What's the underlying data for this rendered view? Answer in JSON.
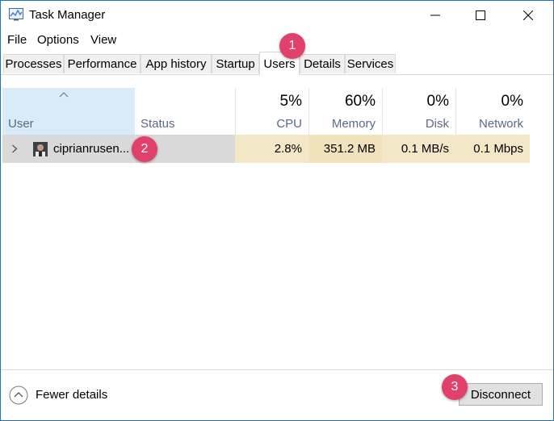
{
  "window": {
    "title": "Task Manager",
    "app_icon": "task-manager-icon",
    "controls": {
      "minimize": "minimize-icon",
      "maximize": "maximize-icon",
      "close": "close-icon"
    }
  },
  "menu": [
    "File",
    "Options",
    "View"
  ],
  "tabs": [
    {
      "label": "Processes",
      "active": false
    },
    {
      "label": "Performance",
      "active": false
    },
    {
      "label": "App history",
      "active": false
    },
    {
      "label": "Startup",
      "active": false
    },
    {
      "label": "Users",
      "active": true
    },
    {
      "label": "Details",
      "active": false
    },
    {
      "label": "Services",
      "active": false
    }
  ],
  "table": {
    "sort_indicator": "sort-up-icon",
    "columns": {
      "user": {
        "label": "User"
      },
      "status": {
        "label": "Status"
      },
      "cpu": {
        "label": "CPU",
        "total": "5%"
      },
      "memory": {
        "label": "Memory",
        "total": "60%"
      },
      "disk": {
        "label": "Disk",
        "total": "0%"
      },
      "network": {
        "label": "Network",
        "total": "0%"
      }
    },
    "rows": [
      {
        "user": "ciprianrusen...",
        "avatar": "user-avatar-icon",
        "status": "",
        "cpu": "2.8%",
        "memory": "351.2 MB",
        "disk": "0.1 MB/s",
        "network": "0.1 Mbps"
      }
    ]
  },
  "footer": {
    "fewer_details": "Fewer details",
    "disconnect": "Disconnect"
  },
  "annotations": [
    "1",
    "2",
    "3"
  ],
  "colors": {
    "window_border": "#1a73c9",
    "badge": "#e0406a",
    "selected_header": "#d9ebf9",
    "row_highlight": "#d9d9d9",
    "heat_low": "#fff4c4",
    "heat_mid": "#f9e8be"
  }
}
